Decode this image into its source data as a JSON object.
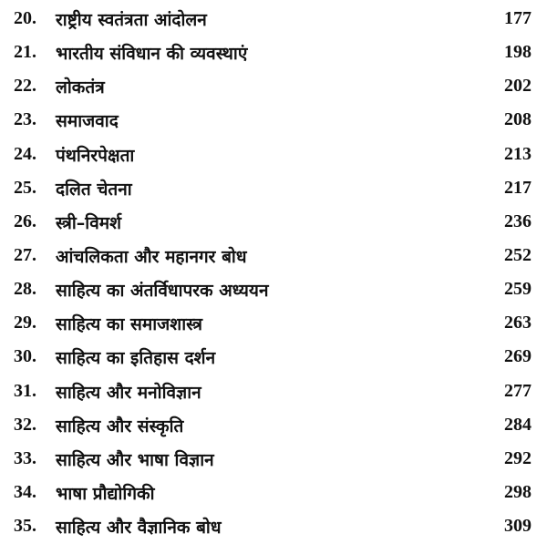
{
  "toc": [
    {
      "number": "20.",
      "title": "राष्ट्रीय स्वतंत्रता आंदोलन",
      "page": "177"
    },
    {
      "number": "21.",
      "title": "भारतीय संविधान की व्यवस्थाएं",
      "page": "198"
    },
    {
      "number": "22.",
      "title": "लोकतंत्र",
      "page": "202"
    },
    {
      "number": "23.",
      "title": "समाजवाद",
      "page": "208"
    },
    {
      "number": "24.",
      "title": "पंथनिरपेक्षता",
      "page": "213"
    },
    {
      "number": "25.",
      "title": "दलित चेतना",
      "page": "217"
    },
    {
      "number": "26.",
      "title": "स्त्री–विमर्श",
      "page": "236"
    },
    {
      "number": "27.",
      "title": "आंचलिकता और महानगर बोध",
      "page": "252"
    },
    {
      "number": "28.",
      "title": "साहित्य का अंतर्विधापरक अध्ययन",
      "page": "259"
    },
    {
      "number": "29.",
      "title": "साहित्य का समाजशास्त्र",
      "page": "263"
    },
    {
      "number": "30.",
      "title": "साहित्य का इतिहास दर्शन",
      "page": "269"
    },
    {
      "number": "31.",
      "title": "साहित्य और मनोविज्ञान",
      "page": "277"
    },
    {
      "number": "32.",
      "title": "साहित्य और संस्कृति",
      "page": "284"
    },
    {
      "number": "33.",
      "title": "साहित्य और भाषा विज्ञान",
      "page": "292"
    },
    {
      "number": "34.",
      "title": "भाषा प्रौद्योगिकी",
      "page": "298"
    },
    {
      "number": "35.",
      "title": "साहित्य और वैज्ञानिक बोध",
      "page": "309"
    }
  ]
}
